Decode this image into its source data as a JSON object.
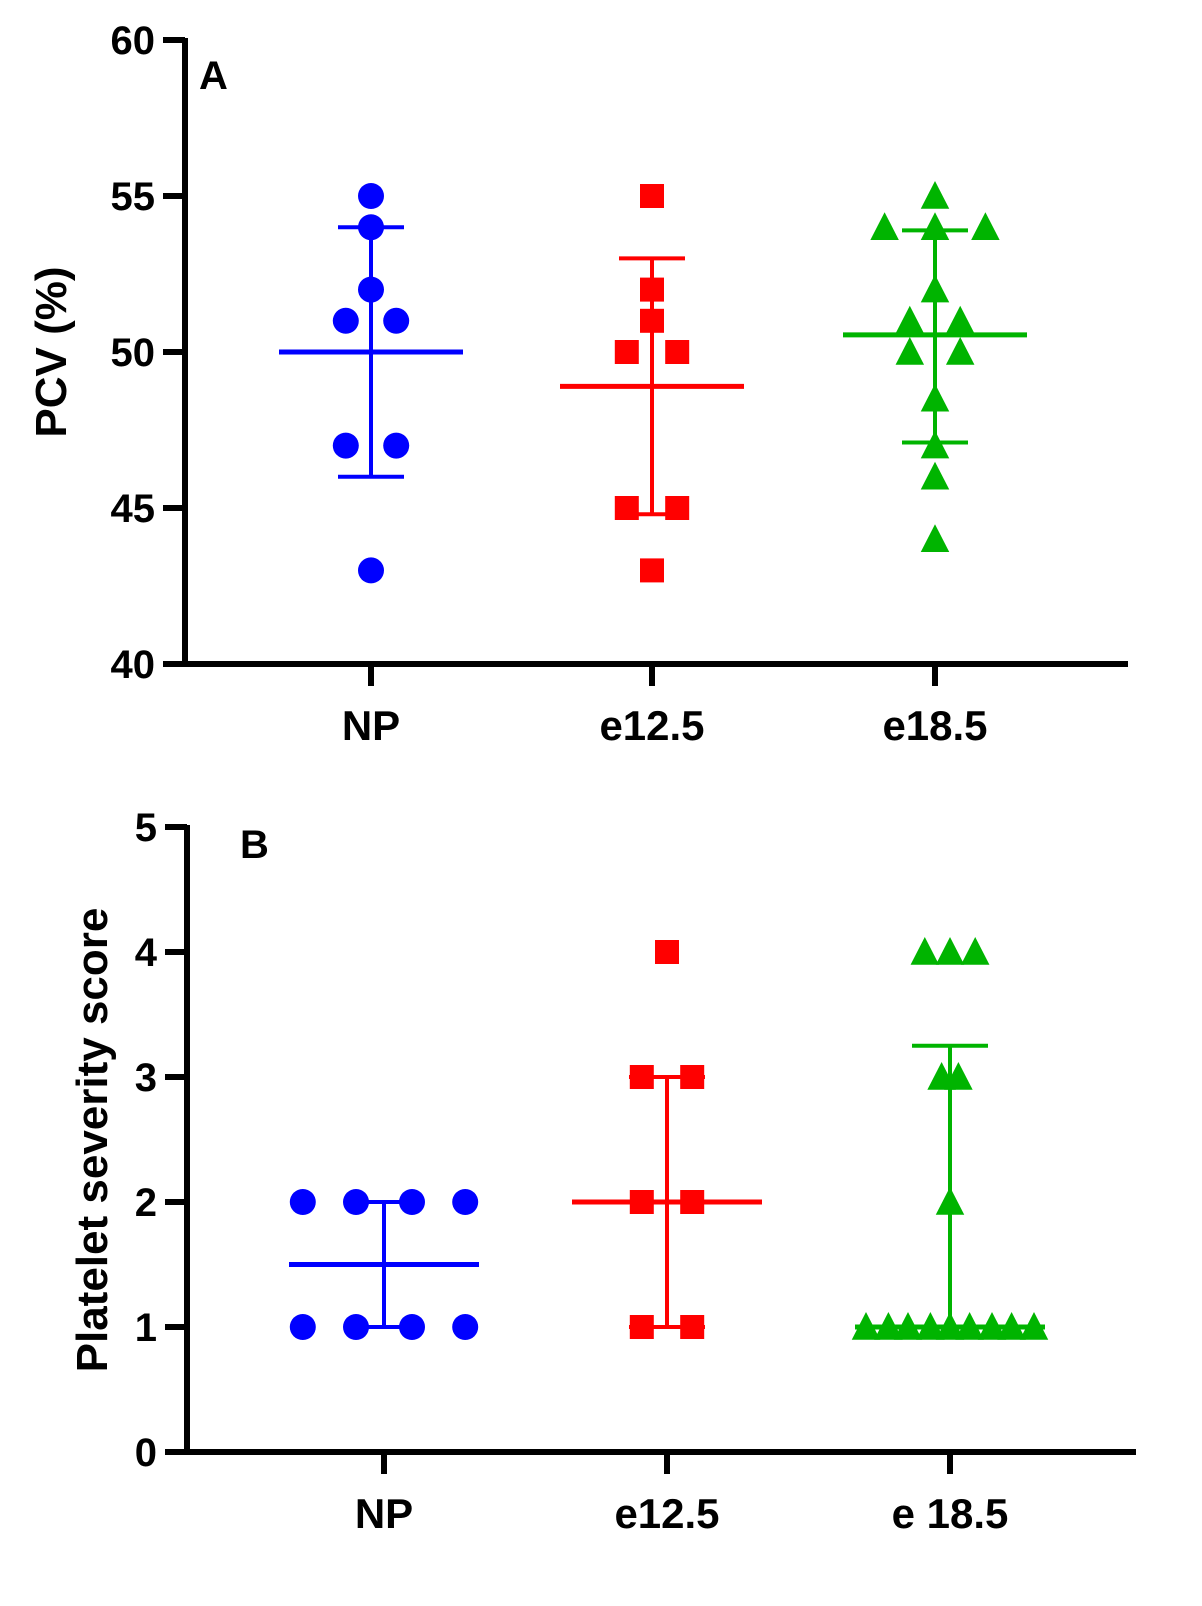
{
  "chart_data": [
    {
      "type": "scatter",
      "panel_label": "A",
      "title": "",
      "xlabel": "",
      "ylabel": "PCV (%)",
      "ylim": [
        40,
        60
      ],
      "yticks": [
        "40",
        "45",
        "50",
        "55",
        "60"
      ],
      "categories": [
        "NP",
        "e12.5",
        "e18.5"
      ],
      "series": [
        {
          "name": "NP",
          "color": "#0000ff",
          "marker": "circle",
          "points": [
            {
              "x": 0,
              "y": 55
            },
            {
              "x": 0,
              "y": 54
            },
            {
              "x": 0,
              "y": 52
            },
            {
              "x": -0.09,
              "y": 51
            },
            {
              "x": 0.09,
              "y": 51
            },
            {
              "x": -0.09,
              "y": 47
            },
            {
              "x": 0.09,
              "y": 47
            },
            {
              "x": 0,
              "y": 43
            }
          ],
          "mean": 50.0,
          "sd_low": 46.0,
          "sd_high": 54.0
        },
        {
          "name": "e12.5",
          "color": "#ff0000",
          "marker": "square",
          "points": [
            {
              "x": 0,
              "y": 55
            },
            {
              "x": 0,
              "y": 52
            },
            {
              "x": 0,
              "y": 51
            },
            {
              "x": -0.09,
              "y": 50
            },
            {
              "x": 0.09,
              "y": 50
            },
            {
              "x": -0.09,
              "y": 45
            },
            {
              "x": 0.09,
              "y": 45
            },
            {
              "x": 0,
              "y": 43
            }
          ],
          "mean": 48.9,
          "sd_low": 44.8,
          "sd_high": 53.0
        },
        {
          "name": "e18.5",
          "color": "#00b400",
          "marker": "triangle",
          "points": [
            {
              "x": 0,
              "y": 55
            },
            {
              "x": -0.18,
              "y": 54
            },
            {
              "x": 0,
              "y": 54
            },
            {
              "x": 0.18,
              "y": 54
            },
            {
              "x": 0,
              "y": 52
            },
            {
              "x": -0.09,
              "y": 51
            },
            {
              "x": 0.09,
              "y": 51
            },
            {
              "x": -0.09,
              "y": 50
            },
            {
              "x": 0.09,
              "y": 50
            },
            {
              "x": 0,
              "y": 48.5
            },
            {
              "x": 0,
              "y": 47
            },
            {
              "x": 0,
              "y": 46
            },
            {
              "x": 0,
              "y": 44
            }
          ],
          "mean": 50.55,
          "sd_low": 47.1,
          "sd_high": 53.9
        }
      ]
    },
    {
      "type": "scatter",
      "panel_label": "B",
      "title": "",
      "xlabel": "",
      "ylabel": "Platelet severity score",
      "ylim": [
        0,
        5
      ],
      "yticks": [
        "0",
        "1",
        "2",
        "3",
        "4",
        "5"
      ],
      "categories": [
        "NP",
        "e12.5",
        "e 18.5"
      ],
      "series": [
        {
          "name": "NP",
          "color": "#0000ff",
          "marker": "circle",
          "points": [
            {
              "x": -0.29,
              "y": 2
            },
            {
              "x": -0.1,
              "y": 2
            },
            {
              "x": 0.1,
              "y": 2
            },
            {
              "x": 0.29,
              "y": 2
            },
            {
              "x": -0.29,
              "y": 1
            },
            {
              "x": -0.1,
              "y": 1
            },
            {
              "x": 0.1,
              "y": 1
            },
            {
              "x": 0.29,
              "y": 1
            }
          ],
          "mean": 1.5,
          "sd_low": 1.0,
          "sd_high": 2.0
        },
        {
          "name": "e12.5",
          "color": "#ff0000",
          "marker": "square",
          "points": [
            {
              "x": 0,
              "y": 4
            },
            {
              "x": -0.09,
              "y": 3
            },
            {
              "x": 0.09,
              "y": 3
            },
            {
              "x": -0.09,
              "y": 2
            },
            {
              "x": 0.09,
              "y": 2
            },
            {
              "x": -0.09,
              "y": 1
            },
            {
              "x": 0.09,
              "y": 1
            }
          ],
          "mean": 2.0,
          "sd_low": 1.0,
          "sd_high": 3.0
        },
        {
          "name": "e 18.5",
          "color": "#00b400",
          "marker": "triangle",
          "points": [
            {
              "x": -0.09,
              "y": 4
            },
            {
              "x": 0,
              "y": 4
            },
            {
              "x": 0.09,
              "y": 4
            },
            {
              "x": -0.03,
              "y": 3
            },
            {
              "x": 0.03,
              "y": 3
            },
            {
              "x": 0,
              "y": 2
            },
            {
              "x": -0.3,
              "y": 1
            },
            {
              "x": -0.22,
              "y": 1
            },
            {
              "x": -0.15,
              "y": 1
            },
            {
              "x": -0.07,
              "y": 1
            },
            {
              "x": 0,
              "y": 1
            },
            {
              "x": 0.07,
              "y": 1
            },
            {
              "x": 0.15,
              "y": 1
            },
            {
              "x": 0.22,
              "y": 1
            },
            {
              "x": 0.3,
              "y": 1
            }
          ],
          "mean": 1.0,
          "sd_low": 1.0,
          "sd_high": 3.25
        }
      ]
    }
  ]
}
